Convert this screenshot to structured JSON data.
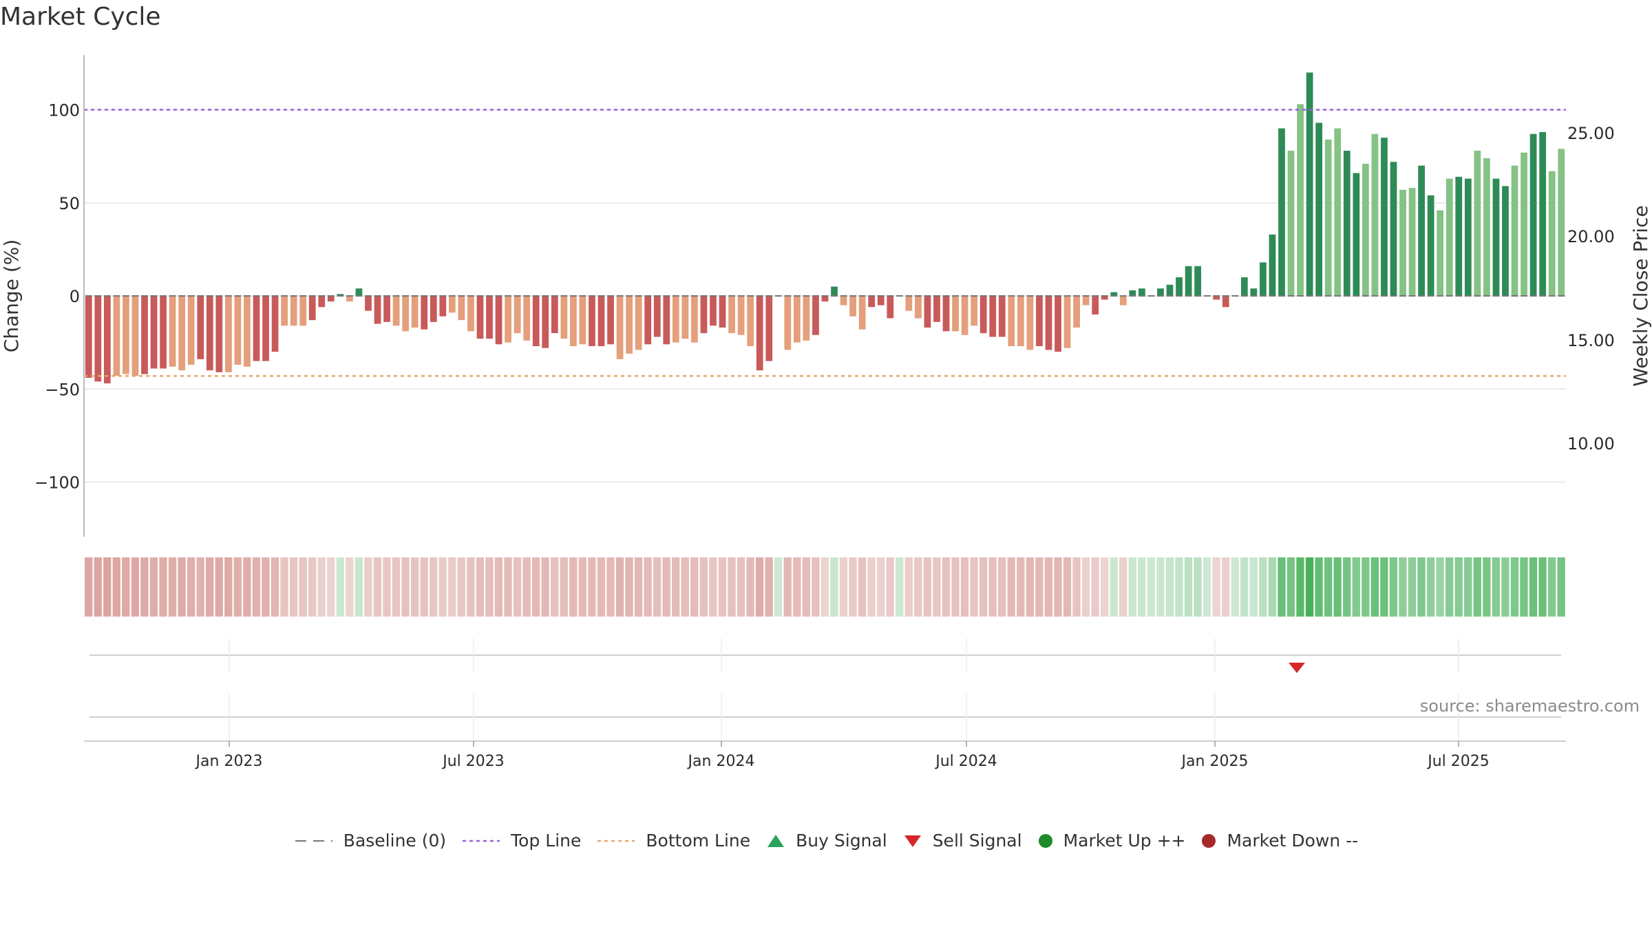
{
  "title": "Market Cycle",
  "source": "source: sharemaestro.com",
  "chart_data": {
    "type": "bar",
    "y_left": {
      "label": "Change (%)",
      "ticks": [
        100,
        50,
        0,
        -50,
        -100
      ],
      "tick_labels": [
        "100",
        "50",
        "0",
        "−50",
        "−100"
      ],
      "range": [
        -128,
        130
      ]
    },
    "y_right": {
      "label": "Weekly Close Price",
      "ticks": [
        25,
        20,
        15,
        10
      ],
      "tick_labels": [
        "25.00",
        "20.00",
        "15.00",
        "10.00"
      ]
    },
    "x_ticks": [
      "Jan 2023",
      "Jul 2023",
      "Jan 2024",
      "Jul 2024",
      "Jan 2025",
      "Jul 2025"
    ],
    "top_line": 100,
    "bottom_line": -43,
    "values": [
      -44,
      -46,
      -47,
      -43,
      -42,
      -43,
      -42,
      -39,
      -39,
      -38,
      -40,
      -37,
      -34,
      -40,
      -41,
      -41,
      -37,
      -38,
      -35,
      -35,
      -30,
      -16,
      -16,
      -16,
      -13,
      -6,
      -3,
      1,
      -3,
      4,
      -8,
      -15,
      -14,
      -16,
      -19,
      -17,
      -18,
      -14,
      -11,
      -9,
      -13,
      -19,
      -23,
      -23,
      -26,
      -25,
      -20,
      -24,
      -27,
      -28,
      -20,
      -23,
      -27,
      -26,
      -27,
      -27,
      -26,
      -34,
      -31,
      -29,
      -26,
      -22,
      -26,
      -25,
      -23,
      -25,
      -20,
      -16,
      -17,
      -20,
      -21,
      -27,
      -40,
      -35,
      0,
      -29,
      -25,
      -24,
      -21,
      -3,
      5,
      -5,
      -11,
      -18,
      -6,
      -5,
      -12,
      0,
      -8,
      -12,
      -17,
      -14,
      -19,
      -19,
      -21,
      -16,
      -20,
      -22,
      -22,
      -27,
      -27,
      -29,
      -27,
      -29,
      -30,
      -28,
      -17,
      -5,
      -10,
      -2,
      2,
      -5,
      3,
      4,
      0,
      4,
      6,
      10,
      16,
      16,
      0,
      -2,
      -6,
      0,
      10,
      4,
      18,
      33,
      90,
      78,
      103,
      120,
      93,
      84,
      90,
      78,
      66,
      71,
      87,
      85,
      72,
      57,
      58,
      70,
      54,
      46,
      63,
      64,
      63,
      78,
      74,
      63,
      59,
      70,
      77,
      87,
      88,
      67,
      79
    ],
    "signals": [
      {
        "type": "Sell Signal",
        "date": "Apr 2025"
      }
    ],
    "legend": [
      "Baseline (0)",
      "Top Line",
      "Bottom Line",
      "Buy Signal",
      "Sell Signal",
      "Market Up ++",
      "Market Down --"
    ]
  },
  "colors": {
    "red_strong": "#c85a5a",
    "red_light": "#e59f7c",
    "green_strong": "#2e8b57",
    "green_light": "#85c285",
    "top_line": "#9a5ee0",
    "bottom_line": "#e5a86a",
    "buy": "#2ca25f",
    "sell": "#d62728",
    "market_up": "#1f8a2a",
    "market_down": "#a82828"
  }
}
